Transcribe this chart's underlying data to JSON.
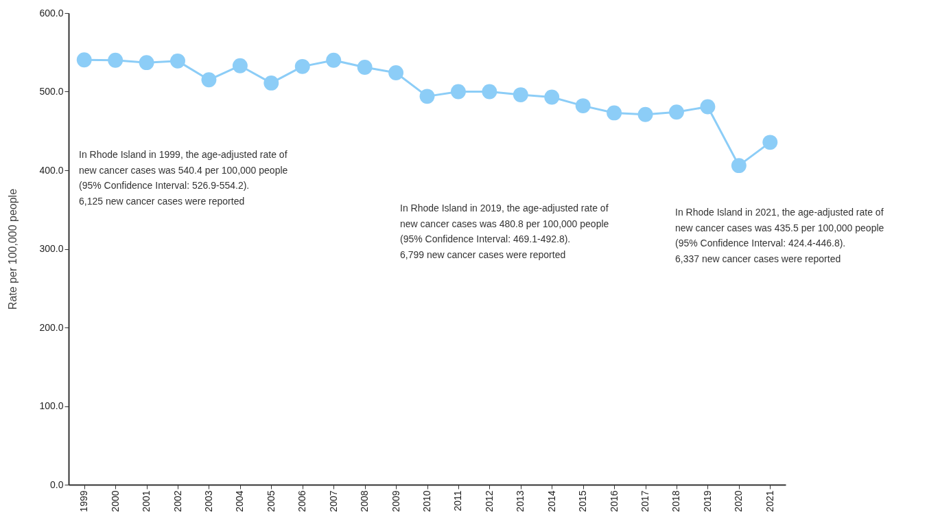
{
  "chart_data": {
    "type": "line",
    "ylabel": "Rate per 100,000 people",
    "categories": [
      "1999",
      "2000",
      "2001",
      "2002",
      "2003",
      "2004",
      "2005",
      "2006",
      "2007",
      "2008",
      "2009",
      "2010",
      "2011",
      "2012",
      "2013",
      "2014",
      "2015",
      "2016",
      "2017",
      "2018",
      "2019",
      "2020",
      "2021"
    ],
    "series": [
      {
        "color": "#8ccdf7",
        "values": [
          540.4,
          540,
          537,
          539,
          515,
          533,
          511,
          532,
          540,
          531,
          524,
          494,
          500,
          500,
          496,
          493,
          482,
          473,
          471,
          474,
          480.8,
          406,
          435.5
        ]
      }
    ],
    "ylim": [
      0,
      600
    ],
    "yticks": [
      {
        "value": 0,
        "label": "0.0"
      },
      {
        "value": 100,
        "label": "100.0"
      },
      {
        "value": 200,
        "label": "200.0"
      },
      {
        "value": 300,
        "label": "300.0"
      },
      {
        "value": 400,
        "label": "400.0"
      },
      {
        "value": 500,
        "label": "500.0"
      },
      {
        "value": 600,
        "label": "600.0"
      }
    ],
    "grid": false,
    "marker": "circle",
    "line_style": "solid",
    "annotations": [
      "In Rhode Island in 1999, the age-adjusted rate of\nnew cancer cases was 540.4 per 100,000 people\n(95% Confidence Interval: 526.9-554.2).\n\n6,125 new cancer cases were reported",
      "In Rhode Island in 2019, the age-adjusted rate of\nnew cancer cases was 480.8 per 100,000 people\n(95% Confidence Interval: 469.1-492.8).\n\n6,799 new cancer cases were reported",
      "In Rhode Island in 2021, the age-adjusted rate of\nnew cancer cases was 435.5 per 100,000 people\n(95% Confidence Interval: 424.4-446.8).\n\n6,337 new cancer cases were reported"
    ]
  }
}
